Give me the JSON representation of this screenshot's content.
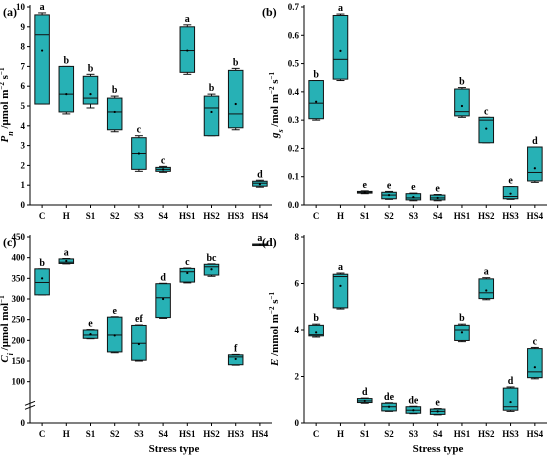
{
  "figure": {
    "x_axis_title": "Stress type",
    "box_color": "#27b1b5",
    "box_edge_color": "#111111"
  },
  "chart_data": [
    {
      "type": "box",
      "panel": "(a)",
      "ylabel_parts": [
        {
          "text": "P",
          "style": "italic"
        },
        {
          "text": "n",
          "style": "sub-italic"
        },
        {
          "text": " /μmol m",
          "style": "normal"
        },
        {
          "text": "−2",
          "style": "sup"
        },
        {
          "text": " s",
          "style": "normal"
        },
        {
          "text": "−1",
          "style": "sup"
        }
      ],
      "ylim": [
        0,
        10
      ],
      "yticks": [
        0,
        1,
        2,
        3,
        4,
        5,
        6,
        7,
        8,
        9,
        10
      ],
      "categories": [
        "C",
        "H",
        "S1",
        "S2",
        "S3",
        "S4",
        "HS1",
        "HS2",
        "HS3",
        "HS4"
      ],
      "boxes": [
        {
          "min": 5.1,
          "q1": 5.1,
          "median": 8.6,
          "q3": 9.6,
          "max": 9.7,
          "mean": 7.8,
          "letter": "a"
        },
        {
          "min": 4.6,
          "q1": 4.7,
          "median": 5.6,
          "q3": 7.0,
          "max": 7.0,
          "mean": 5.6,
          "letter": "b"
        },
        {
          "min": 4.9,
          "q1": 5.1,
          "median": 5.4,
          "q3": 6.5,
          "max": 6.6,
          "mean": 5.6,
          "letter": "b"
        },
        {
          "min": 3.7,
          "q1": 3.8,
          "median": 4.7,
          "q3": 5.4,
          "max": 5.5,
          "mean": 4.7,
          "letter": "b"
        },
        {
          "min": 1.7,
          "q1": 1.8,
          "median": 2.6,
          "q3": 3.4,
          "max": 3.5,
          "mean": 2.6,
          "letter": "c"
        },
        {
          "min": 1.65,
          "q1": 1.7,
          "median": 1.8,
          "q3": 1.9,
          "max": 1.95,
          "mean": 1.8,
          "letter": "c"
        },
        {
          "min": 6.6,
          "q1": 6.7,
          "median": 7.8,
          "q3": 9.0,
          "max": 9.1,
          "mean": 7.8,
          "letter": "a"
        },
        {
          "min": 3.5,
          "q1": 3.5,
          "median": 4.9,
          "q3": 5.5,
          "max": 5.6,
          "mean": 4.7,
          "letter": "b"
        },
        {
          "min": 3.8,
          "q1": 3.9,
          "median": 4.6,
          "q3": 6.8,
          "max": 6.9,
          "mean": 5.1,
          "letter": "b"
        },
        {
          "min": 0.9,
          "q1": 0.95,
          "median": 1.1,
          "q3": 1.2,
          "max": 1.25,
          "mean": 1.05,
          "letter": "d"
        }
      ]
    },
    {
      "type": "box",
      "panel": "(b)",
      "ylabel_parts": [
        {
          "text": "g",
          "style": "italic"
        },
        {
          "text": "s",
          "style": "sub-italic"
        },
        {
          "text": " /mol m",
          "style": "normal"
        },
        {
          "text": "−2",
          "style": "sup"
        },
        {
          "text": " s",
          "style": "normal"
        },
        {
          "text": "−1",
          "style": "sup"
        }
      ],
      "ylim": [
        0,
        0.7
      ],
      "yticks": [
        0.0,
        0.1,
        0.2,
        0.3,
        0.4,
        0.5,
        0.6,
        0.7
      ],
      "categories": [
        "C",
        "H",
        "S1",
        "S2",
        "S3",
        "S4",
        "HS1",
        "HS2",
        "HS3",
        "HS4"
      ],
      "boxes": [
        {
          "min": 0.3,
          "q1": 0.305,
          "median": 0.36,
          "q3": 0.44,
          "max": 0.44,
          "mean": 0.365,
          "letter": "b"
        },
        {
          "min": 0.44,
          "q1": 0.445,
          "median": 0.515,
          "q3": 0.67,
          "max": 0.675,
          "mean": 0.545,
          "letter": "a"
        },
        {
          "min": 0.04,
          "q1": 0.042,
          "median": 0.045,
          "q3": 0.048,
          "max": 0.05,
          "mean": 0.045,
          "letter": "e"
        },
        {
          "min": 0.02,
          "q1": 0.022,
          "median": 0.035,
          "q3": 0.045,
          "max": 0.048,
          "mean": 0.035,
          "letter": "e"
        },
        {
          "min": 0.015,
          "q1": 0.018,
          "median": 0.025,
          "q3": 0.04,
          "max": 0.042,
          "mean": 0.028,
          "letter": "e"
        },
        {
          "min": 0.015,
          "q1": 0.018,
          "median": 0.025,
          "q3": 0.035,
          "max": 0.037,
          "mean": 0.025,
          "letter": "e"
        },
        {
          "min": 0.31,
          "q1": 0.315,
          "median": 0.33,
          "q3": 0.41,
          "max": 0.415,
          "mean": 0.35,
          "letter": "b"
        },
        {
          "min": 0.22,
          "q1": 0.22,
          "median": 0.3,
          "q3": 0.31,
          "max": 0.31,
          "mean": 0.27,
          "letter": "c"
        },
        {
          "min": 0.02,
          "q1": 0.022,
          "median": 0.03,
          "q3": 0.065,
          "max": 0.065,
          "mean": 0.04,
          "letter": "e"
        },
        {
          "min": 0.08,
          "q1": 0.085,
          "median": 0.115,
          "q3": 0.205,
          "max": 0.205,
          "mean": 0.13,
          "letter": "d"
        }
      ]
    },
    {
      "type": "box",
      "panel": "(c)",
      "ylabel_parts": [
        {
          "text": "C",
          "style": "italic"
        },
        {
          "text": "i",
          "style": "sub-italic"
        },
        {
          "text": " /μmol mol",
          "style": "normal"
        },
        {
          "text": "−1",
          "style": "sup"
        }
      ],
      "ylim": [
        0,
        450
      ],
      "broken_axis": true,
      "yticks": [
        0,
        100,
        150,
        200,
        250,
        300,
        350,
        400,
        450
      ],
      "categories": [
        "C",
        "H",
        "S1",
        "S2",
        "S3",
        "S4",
        "HS1",
        "HS2",
        "HS3",
        "HS4"
      ],
      "boxes": [
        {
          "min": 310,
          "q1": 310,
          "median": 340,
          "q3": 373,
          "max": 373,
          "mean": 350,
          "letter": "b"
        },
        {
          "min": 385,
          "q1": 386,
          "median": 389,
          "q3": 397,
          "max": 398,
          "mean": 392,
          "letter": "a"
        },
        {
          "min": 204,
          "q1": 205,
          "median": 213,
          "q3": 225,
          "max": 226,
          "mean": 215,
          "letter": "e"
        },
        {
          "min": 170,
          "q1": 172,
          "median": 213,
          "q3": 256,
          "max": 257,
          "mean": 212,
          "letter": "e"
        },
        {
          "min": 150,
          "q1": 152,
          "median": 193,
          "q3": 236,
          "max": 237,
          "mean": 191,
          "letter": "ef"
        },
        {
          "min": 253,
          "q1": 255,
          "median": 303,
          "q3": 337,
          "max": 338,
          "mean": 300,
          "letter": "d"
        },
        {
          "min": 339,
          "q1": 341,
          "median": 366,
          "q3": 374,
          "max": 375,
          "mean": 363,
          "letter": "c"
        },
        {
          "min": 355,
          "q1": 358,
          "median": 378,
          "q3": 384,
          "max": 385,
          "mean": 372,
          "letter": "bc"
        },
        {
          "min": 140,
          "q1": 141,
          "median": 160,
          "q3": 165,
          "max": 166,
          "mean": 155,
          "letter": "f"
        },
        {
          "min": 430,
          "q1": 430,
          "median": 432,
          "q3": 433,
          "max": 433,
          "mean": 432,
          "letter": "a"
        }
      ]
    },
    {
      "type": "box",
      "panel": "(d)",
      "ylabel_parts": [
        {
          "text": "E",
          "style": "italic"
        },
        {
          "text": " /mmol m",
          "style": "normal"
        },
        {
          "text": "−2",
          "style": "sup"
        },
        {
          "text": " s",
          "style": "normal"
        },
        {
          "text": "−1",
          "style": "sup"
        }
      ],
      "ylim": [
        0,
        8
      ],
      "yticks": [
        0,
        2,
        4,
        6,
        8
      ],
      "categories": [
        "C",
        "H",
        "S1",
        "S2",
        "S3",
        "S4",
        "HS1",
        "HS2",
        "HS3",
        "HS4"
      ],
      "boxes": [
        {
          "min": 3.7,
          "q1": 3.75,
          "median": 3.8,
          "q3": 4.2,
          "max": 4.25,
          "mean": 3.9,
          "letter": "b"
        },
        {
          "min": 4.9,
          "q1": 4.95,
          "median": 6.3,
          "q3": 6.4,
          "max": 6.45,
          "mean": 5.9,
          "letter": "a"
        },
        {
          "min": 0.85,
          "q1": 0.88,
          "median": 0.95,
          "q3": 1.05,
          "max": 1.07,
          "mean": 0.95,
          "letter": "d"
        },
        {
          "min": 0.5,
          "q1": 0.52,
          "median": 0.7,
          "q3": 0.85,
          "max": 0.87,
          "mean": 0.7,
          "letter": "de"
        },
        {
          "min": 0.4,
          "q1": 0.42,
          "median": 0.55,
          "q3": 0.7,
          "max": 0.72,
          "mean": 0.55,
          "letter": "de"
        },
        {
          "min": 0.35,
          "q1": 0.37,
          "median": 0.5,
          "q3": 0.6,
          "max": 0.62,
          "mean": 0.5,
          "letter": "e"
        },
        {
          "min": 3.5,
          "q1": 3.55,
          "median": 4.0,
          "q3": 4.2,
          "max": 4.25,
          "mean": 3.9,
          "letter": "b"
        },
        {
          "min": 5.3,
          "q1": 5.35,
          "median": 5.6,
          "q3": 6.2,
          "max": 6.25,
          "mean": 5.7,
          "letter": "a"
        },
        {
          "min": 0.5,
          "q1": 0.55,
          "median": 0.7,
          "q3": 1.5,
          "max": 1.55,
          "mean": 0.9,
          "letter": "d"
        },
        {
          "min": 1.9,
          "q1": 1.95,
          "median": 2.2,
          "q3": 3.2,
          "max": 3.25,
          "mean": 2.4,
          "letter": "c"
        }
      ]
    }
  ]
}
